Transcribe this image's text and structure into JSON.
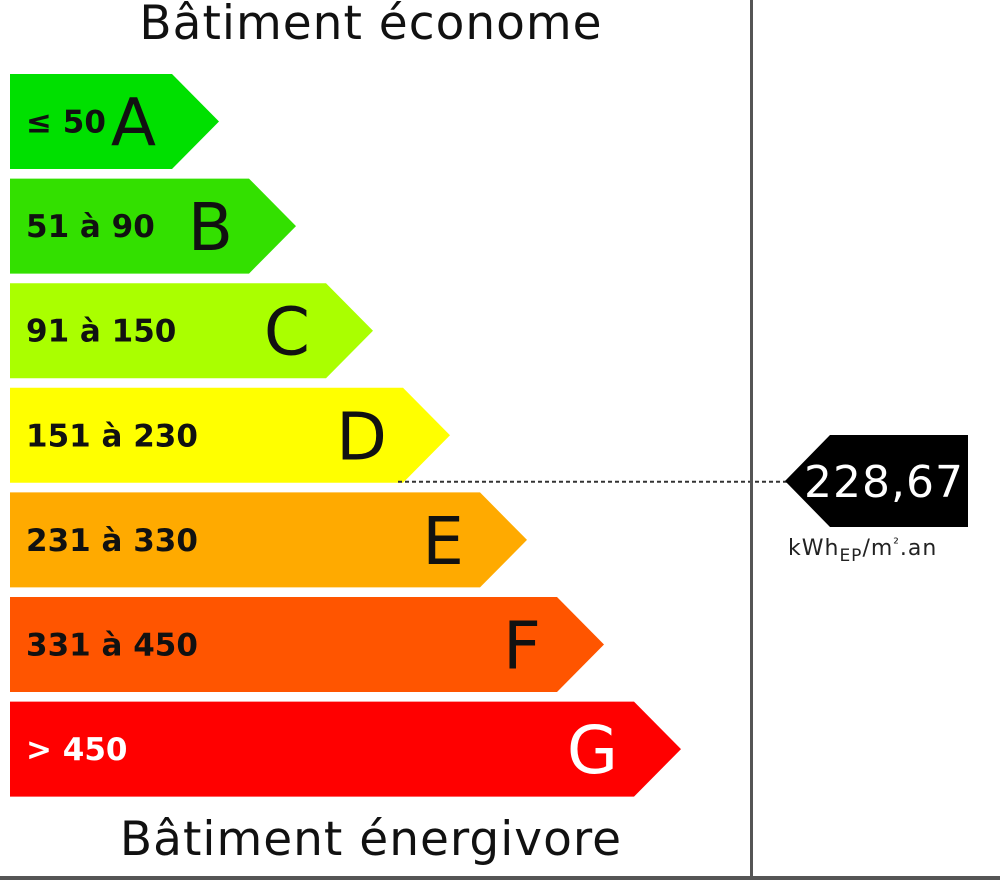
{
  "chart_data": {
    "type": "bar",
    "title": "Bâtiment économe",
    "subtitle": "Bâtiment énergivore",
    "categories": [
      "A",
      "B",
      "C",
      "D",
      "E",
      "F",
      "G"
    ],
    "bands": [
      {
        "letter": "A",
        "range": "≤ 50",
        "color": "#00e000"
      },
      {
        "letter": "B",
        "range": "51 à 90",
        "color": "#33e000"
      },
      {
        "letter": "C",
        "range": "91 à 150",
        "color": "#aaff00"
      },
      {
        "letter": "D",
        "range": "151 à 230",
        "color": "#ffff00"
      },
      {
        "letter": "E",
        "range": "231 à 330",
        "color": "#ffaa00"
      },
      {
        "letter": "F",
        "range": "331 à 450",
        "color": "#ff5500"
      },
      {
        "letter": "G",
        "range": "> 450",
        "color": "#ff0000"
      }
    ],
    "marker": {
      "value": 228.67,
      "label": "228,67",
      "band": "D",
      "unit": {
        "main": "kWh",
        "sub": "EP",
        "rest": "/m",
        "sup": "²",
        "tail": ".an"
      },
      "color": "#000000"
    }
  }
}
